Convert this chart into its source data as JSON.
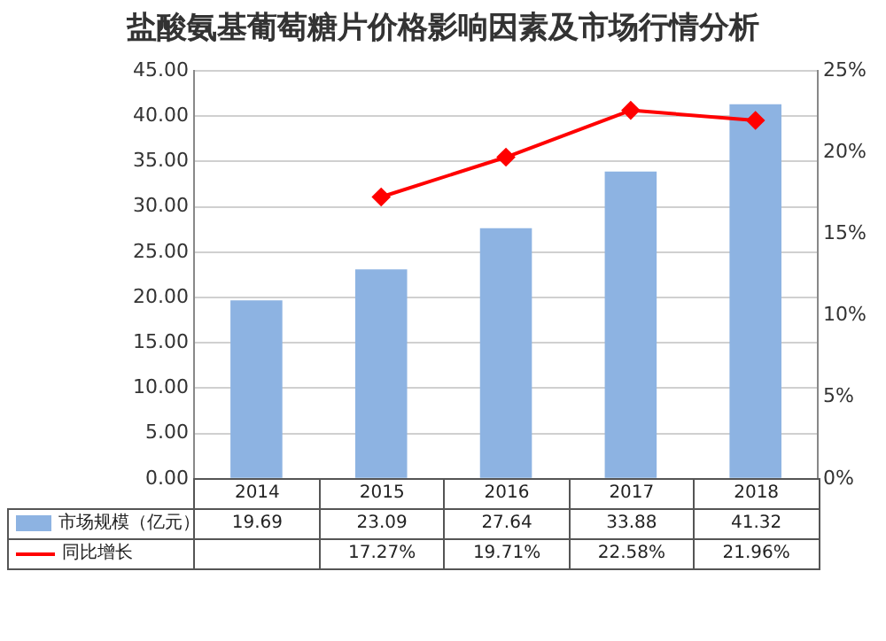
{
  "chart_data": {
    "type": "bar",
    "title": "盐酸氨基葡萄糖片价格影响因素及市场行情分析",
    "categories": [
      "2014",
      "2015",
      "2016",
      "2017",
      "2018"
    ],
    "series": [
      {
        "name": "市场规模（亿元）",
        "color": "#8db3e2",
        "values": [
          19.69,
          23.09,
          27.64,
          33.88,
          41.32
        ],
        "value_labels": [
          "19.69",
          "23.09",
          "27.64",
          "33.88",
          "41.32"
        ]
      },
      {
        "name": "同比增长",
        "type": "line",
        "axis": "y2",
        "color": "#ff0000",
        "marker": "diamond",
        "values": [
          null,
          17.27,
          19.71,
          22.58,
          21.96
        ],
        "value_labels": [
          null,
          "17.27%",
          "19.71%",
          "22.58%",
          "21.96%"
        ]
      }
    ],
    "ylim": [
      0,
      45
    ],
    "yticks": [
      {
        "value": 0,
        "label": "0.00"
      },
      {
        "value": 5,
        "label": "5.00"
      },
      {
        "value": 10,
        "label": "10.00"
      },
      {
        "value": 15,
        "label": "15.00"
      },
      {
        "value": 20,
        "label": "20.00"
      },
      {
        "value": 25,
        "label": "25.00"
      },
      {
        "value": 30,
        "label": "30.00"
      },
      {
        "value": 35,
        "label": "35.00"
      },
      {
        "value": 40,
        "label": "40.00"
      },
      {
        "value": 45,
        "label": "45.00"
      }
    ],
    "y2lim": [
      0,
      25
    ],
    "y2ticks": [
      {
        "value": 0,
        "label": "0%"
      },
      {
        "value": 5,
        "label": "5%"
      },
      {
        "value": 10,
        "label": "10%"
      },
      {
        "value": 15,
        "label": "15%"
      },
      {
        "value": 20,
        "label": "20%"
      },
      {
        "value": 25,
        "label": "25%"
      }
    ],
    "grid": "y",
    "legend": "bottom"
  }
}
